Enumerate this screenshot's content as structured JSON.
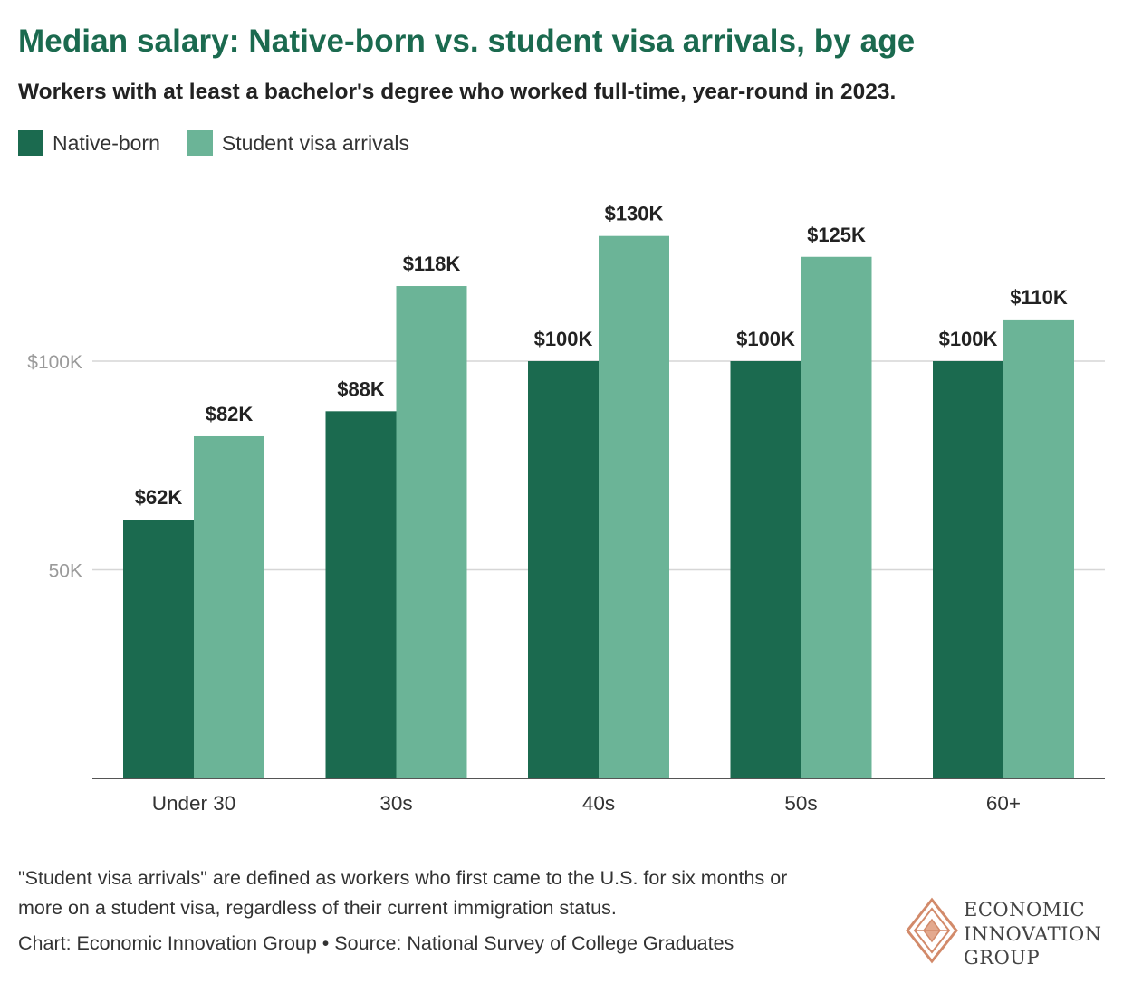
{
  "header": {
    "title": "Median salary: Native-born vs. student visa arrivals, by age",
    "subtitle": "Workers with at least a bachelor's degree who worked full-time, year-round in 2023."
  },
  "colors": {
    "native": "#1b6a4f",
    "student": "#6bb497",
    "title": "#1b6a4f",
    "grid": "#d6d6d6",
    "axis": "#555555"
  },
  "chart_data": {
    "type": "bar",
    "categories": [
      "Under 30",
      "30s",
      "40s",
      "50s",
      "60+"
    ],
    "series": [
      {
        "name": "Native-born",
        "values": [
          62000,
          88000,
          100000,
          100000,
          100000
        ],
        "labels": [
          "$62K",
          "$88K",
          "$100K",
          "$100K",
          "$100K"
        ]
      },
      {
        "name": "Student visa arrivals",
        "values": [
          82000,
          118000,
          130000,
          125000,
          110000
        ],
        "labels": [
          "$82K",
          "$118K",
          "$130K",
          "$125K",
          "$110K"
        ]
      }
    ],
    "ylim": [
      0,
      140000
    ],
    "yticks": [
      {
        "value": 50000,
        "label": "50K"
      },
      {
        "value": 100000,
        "label": "$100K"
      }
    ],
    "grid": true,
    "legend": "top-left"
  },
  "footer": {
    "note": "\"Student visa arrivals\" are defined as workers who first came to the U.S. for six months or more on a student visa, regardless of their current immigration status.",
    "credit": "Chart: Economic Innovation Group • Source: National Survey of College Graduates",
    "logo_lines": [
      "ECONOMIC",
      "INNOVATION",
      "GROUP"
    ]
  }
}
